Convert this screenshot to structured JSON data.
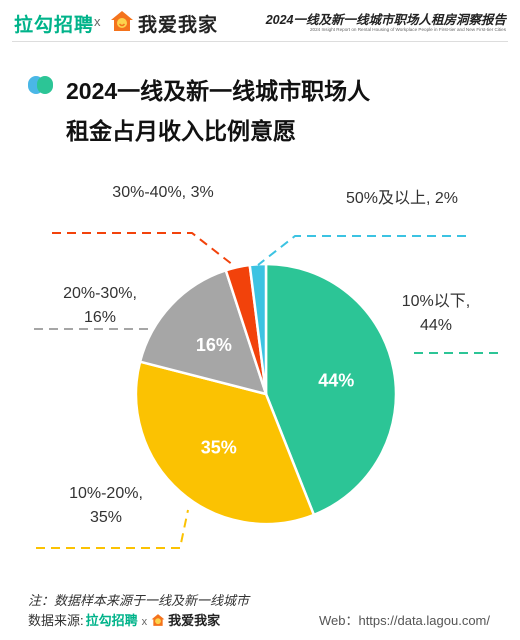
{
  "header": {
    "logo_lagou": "拉勾招聘",
    "logo_x": "x",
    "logo_5i5j": "我爱我家",
    "report_title": "2024一线及新一线城市职场人租房洞察报告",
    "report_subtitle": "2024 Insight Report on Rental Housing of Workplace People in First-tier and New First-tier Cities"
  },
  "chart_data": {
    "type": "pie",
    "title_line1": "2024一线及新一线城市职场人",
    "title_line2": "租金占月收入比例意愿",
    "slices": [
      {
        "name": "10%以下",
        "value": 44,
        "slice_label": "44%",
        "callout": [
          "10%以下,",
          "44%"
        ],
        "color": "#2cc596"
      },
      {
        "name": "10%-20%",
        "value": 35,
        "slice_label": "35%",
        "callout": [
          "10%-20%,",
          "35%"
        ],
        "color": "#fbc202"
      },
      {
        "name": "20%-30%",
        "value": 16,
        "slice_label": "16%",
        "callout": [
          "20%-30%,",
          "16%"
        ],
        "color": "#a6a6a6"
      },
      {
        "name": "30%-40%",
        "value": 3,
        "slice_label": "",
        "callout": [
          "30%-40%, 3%"
        ],
        "color": "#f2420b"
      },
      {
        "name": "50%及以上",
        "value": 2,
        "slice_label": "",
        "callout": [
          "50%及以上, 2%"
        ],
        "color": "#3cc3e2"
      }
    ]
  },
  "footer": {
    "note": "注：数据样本来源于一线及新一线城市",
    "source_label": "数据来源:",
    "source_lagou": "拉勾招聘",
    "source_x": "x",
    "source_5i5j": "我爱我家",
    "web": "Web：https://data.lagou.com/"
  }
}
